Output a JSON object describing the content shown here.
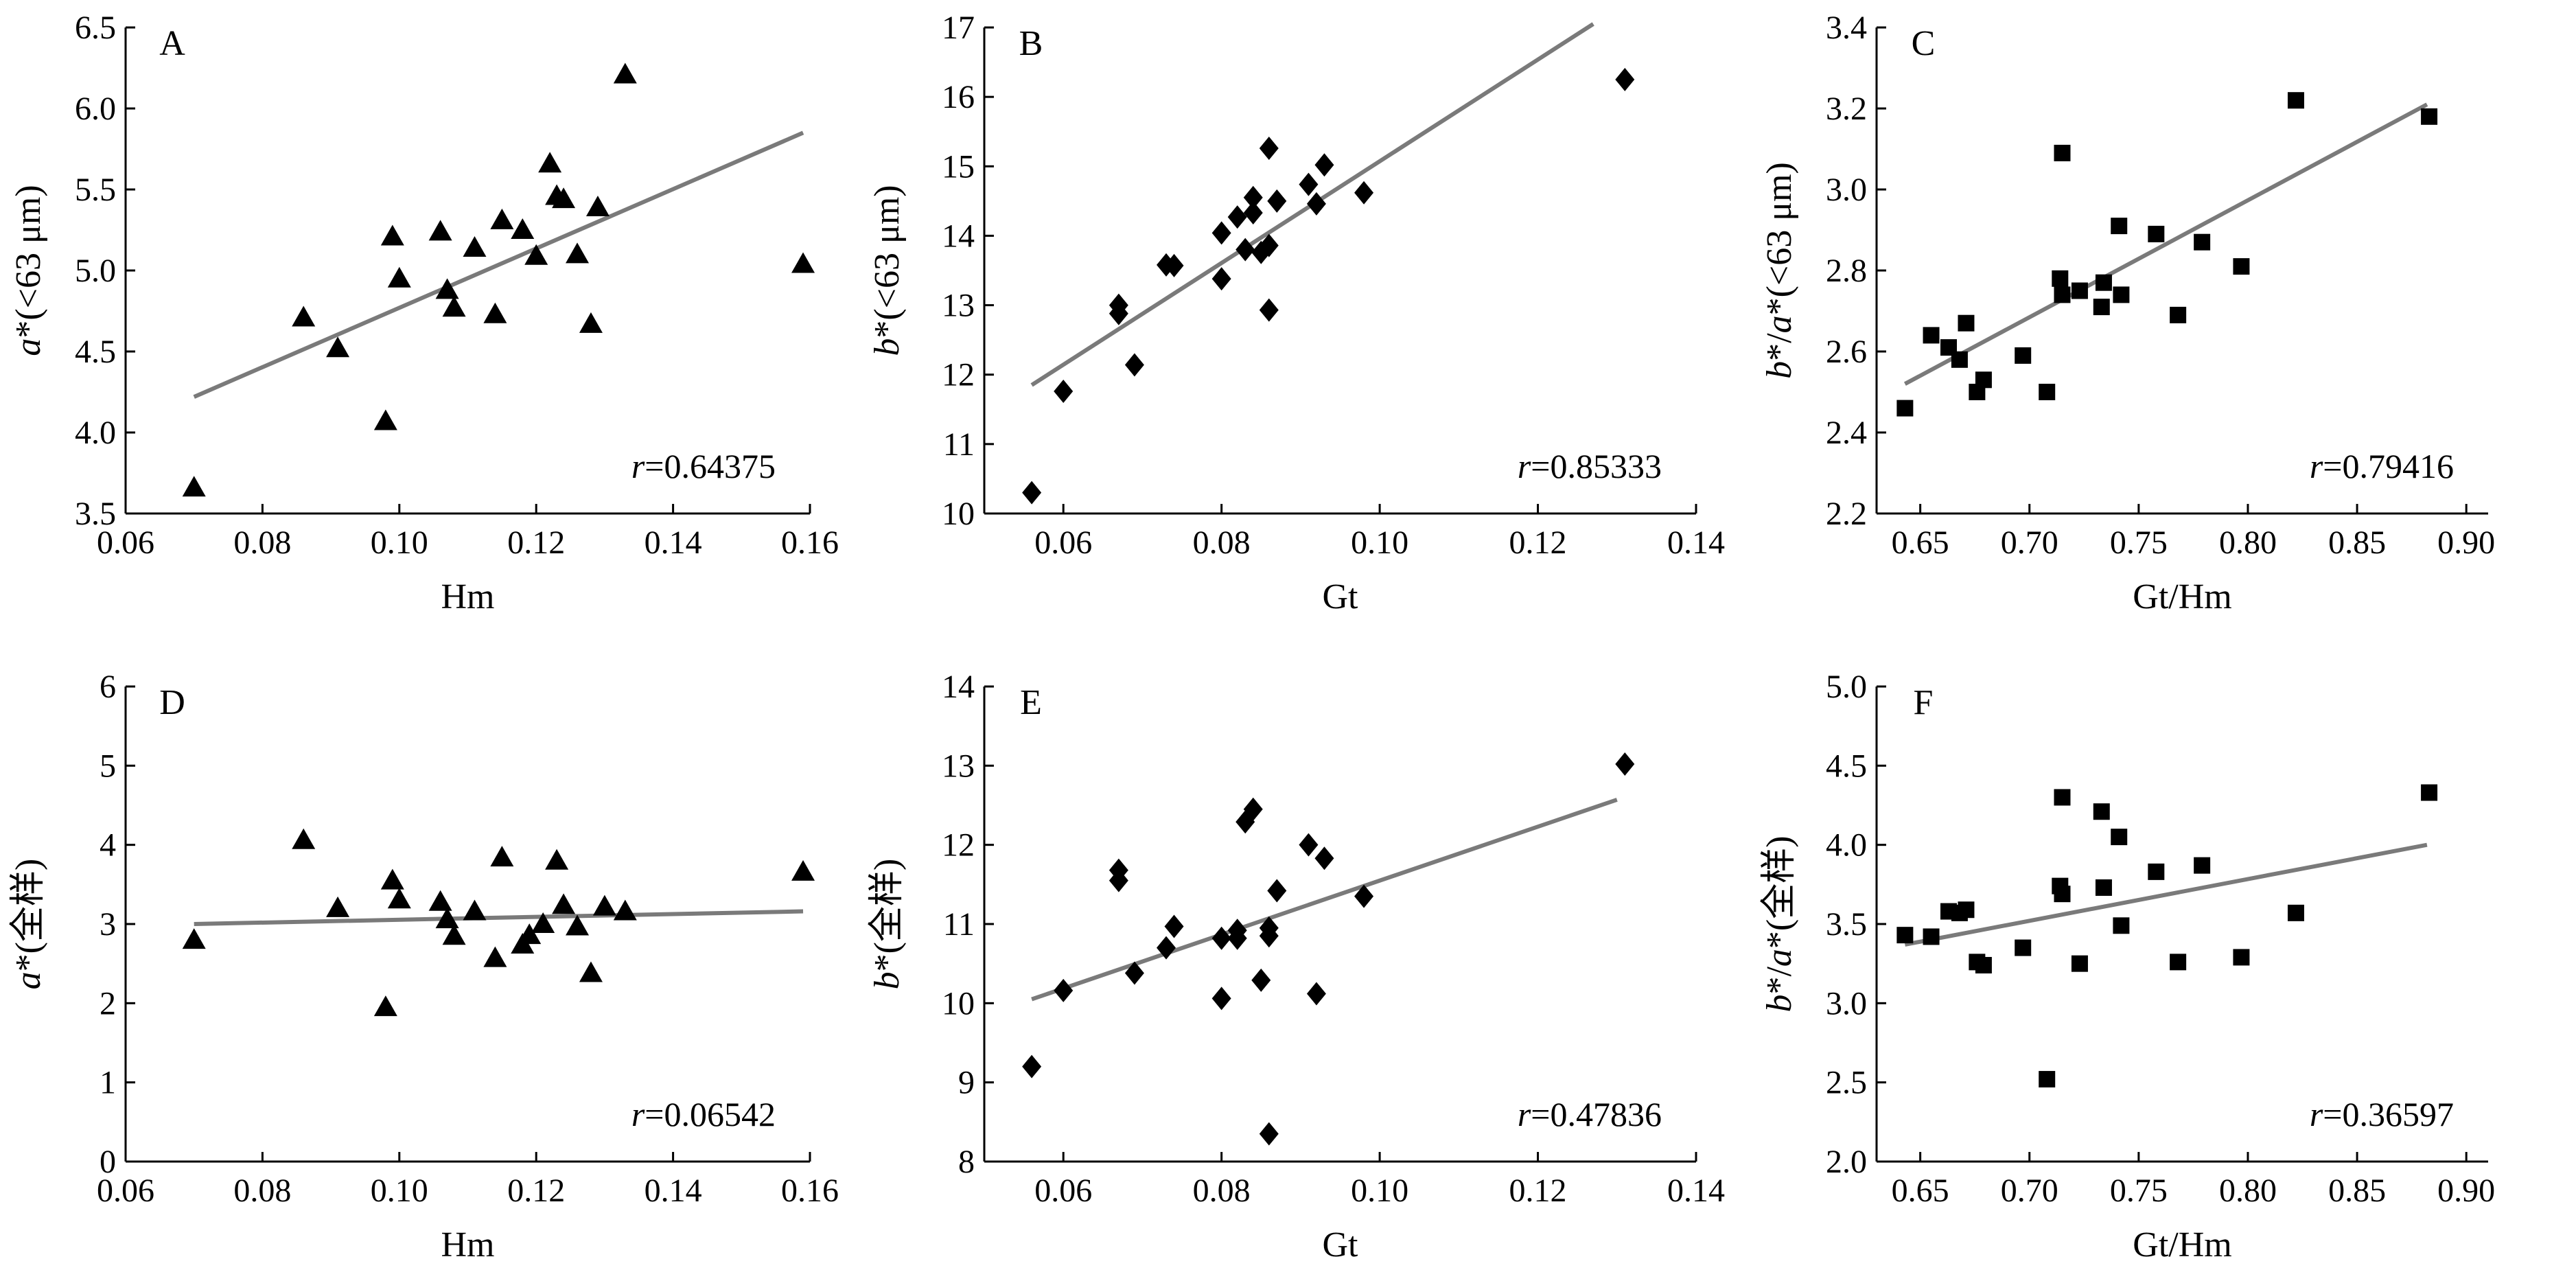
{
  "figure": {
    "colors": {
      "marker": "#000000",
      "fit_line": "#7a7a7a",
      "axis": "#000000"
    }
  },
  "chart_data": [
    {
      "panel": "A",
      "type": "scatter",
      "marker": "triangle",
      "xlabel": "Hm",
      "ylabel_italic": "a",
      "ylabel_rest": "*(<63 μm)",
      "xlim": [
        0.06,
        0.16
      ],
      "ylim": [
        3.5,
        6.5
      ],
      "x_ticks": [
        "0.06",
        "0.08",
        "0.10",
        "0.12",
        "0.14",
        "0.16"
      ],
      "y_ticks": [
        "3.5",
        "4.0",
        "4.5",
        "5.0",
        "5.5",
        "6.0",
        "6.5"
      ],
      "annotation_italic": "r",
      "annotation_rest": "=0.64375",
      "fit": [
        [
          0.07,
          4.22
        ],
        [
          0.159,
          5.85
        ]
      ],
      "points": [
        [
          0.07,
          3.66
        ],
        [
          0.086,
          4.71
        ],
        [
          0.091,
          4.52
        ],
        [
          0.098,
          4.07
        ],
        [
          0.099,
          5.21
        ],
        [
          0.1,
          4.95
        ],
        [
          0.106,
          5.24
        ],
        [
          0.107,
          4.88
        ],
        [
          0.108,
          4.77
        ],
        [
          0.111,
          5.14
        ],
        [
          0.114,
          4.73
        ],
        [
          0.115,
          5.31
        ],
        [
          0.118,
          5.25
        ],
        [
          0.12,
          5.09
        ],
        [
          0.122,
          5.66
        ],
        [
          0.123,
          5.46
        ],
        [
          0.124,
          5.44
        ],
        [
          0.126,
          5.1
        ],
        [
          0.128,
          4.67
        ],
        [
          0.129,
          5.39
        ],
        [
          0.133,
          6.21
        ],
        [
          0.159,
          5.04
        ]
      ]
    },
    {
      "panel": "B",
      "type": "scatter",
      "marker": "diamond",
      "xlabel": "Gt",
      "ylabel_italic": "b",
      "ylabel_rest": "*(<63 μm)",
      "xlim": [
        0.05,
        0.14
      ],
      "ylim": [
        10,
        17
      ],
      "x_ticks": [
        "0.06",
        "0.08",
        "0.10",
        "0.12",
        "0.14"
      ],
      "y_ticks": [
        "10",
        "11",
        "12",
        "13",
        "14",
        "15",
        "16",
        "17"
      ],
      "annotation_italic": "r",
      "annotation_rest": "=0.85333",
      "fit": [
        [
          0.056,
          11.85
        ],
        [
          0.127,
          17.05
        ]
      ],
      "points": [
        [
          0.056,
          10.3
        ],
        [
          0.06,
          11.76
        ],
        [
          0.067,
          13.0
        ],
        [
          0.067,
          12.88
        ],
        [
          0.069,
          12.14
        ],
        [
          0.073,
          13.58
        ],
        [
          0.074,
          13.57
        ],
        [
          0.08,
          14.04
        ],
        [
          0.08,
          13.38
        ],
        [
          0.082,
          14.27
        ],
        [
          0.083,
          13.8
        ],
        [
          0.084,
          14.33
        ],
        [
          0.084,
          14.55
        ],
        [
          0.085,
          13.76
        ],
        [
          0.086,
          15.26
        ],
        [
          0.086,
          13.86
        ],
        [
          0.086,
          12.93
        ],
        [
          0.087,
          14.5
        ],
        [
          0.091,
          14.74
        ],
        [
          0.092,
          14.46
        ],
        [
          0.093,
          15.02
        ],
        [
          0.098,
          14.62
        ],
        [
          0.131,
          16.25
        ]
      ]
    },
    {
      "panel": "C",
      "type": "scatter",
      "marker": "square",
      "xlabel": "Gt/Hm",
      "ylabel_italic_1": "b",
      "ylabel_mid": "*/",
      "ylabel_italic_2": "a",
      "ylabel_rest": "*(<63 μm)",
      "xlim": [
        0.63,
        0.91
      ],
      "ylim": [
        2.2,
        3.4
      ],
      "x_ticks": [
        "0.65",
        "0.70",
        "0.75",
        "0.80",
        "0.85",
        "0.90"
      ],
      "y_ticks": [
        "2.2",
        "2.4",
        "2.6",
        "2.8",
        "3.0",
        "3.2",
        "3.4"
      ],
      "annotation_italic": "r",
      "annotation_rest": "=0.79416",
      "fit": [
        [
          0.643,
          2.52
        ],
        [
          0.882,
          3.21
        ]
      ],
      "points": [
        [
          0.643,
          2.46
        ],
        [
          0.655,
          2.64
        ],
        [
          0.663,
          2.61
        ],
        [
          0.668,
          2.58
        ],
        [
          0.671,
          2.67
        ],
        [
          0.676,
          2.5
        ],
        [
          0.679,
          2.53
        ],
        [
          0.697,
          2.59
        ],
        [
          0.708,
          2.5
        ],
        [
          0.714,
          2.78
        ],
        [
          0.715,
          3.09
        ],
        [
          0.715,
          2.74
        ],
        [
          0.723,
          2.75
        ],
        [
          0.733,
          2.71
        ],
        [
          0.734,
          2.77
        ],
        [
          0.741,
          2.91
        ],
        [
          0.742,
          2.74
        ],
        [
          0.758,
          2.89
        ],
        [
          0.768,
          2.69
        ],
        [
          0.779,
          2.87
        ],
        [
          0.797,
          2.81
        ],
        [
          0.822,
          3.22
        ],
        [
          0.883,
          3.18
        ]
      ]
    },
    {
      "panel": "D",
      "type": "scatter",
      "marker": "triangle",
      "xlabel": "Hm",
      "ylabel_italic": "a",
      "ylabel_rest": "*(全样)",
      "xlim": [
        0.06,
        0.16
      ],
      "ylim": [
        0,
        6
      ],
      "x_ticks": [
        "0.06",
        "0.08",
        "0.10",
        "0.12",
        "0.14",
        "0.16"
      ],
      "y_ticks": [
        "0",
        "1",
        "2",
        "3",
        "4",
        "5",
        "6"
      ],
      "annotation_italic": "r",
      "annotation_rest": "=0.06542",
      "fit": [
        [
          0.07,
          3.0
        ],
        [
          0.159,
          3.16
        ]
      ],
      "points": [
        [
          0.07,
          2.8
        ],
        [
          0.086,
          4.06
        ],
        [
          0.091,
          3.2
        ],
        [
          0.098,
          1.95
        ],
        [
          0.099,
          3.55
        ],
        [
          0.1,
          3.31
        ],
        [
          0.106,
          3.28
        ],
        [
          0.107,
          3.06
        ],
        [
          0.108,
          2.85
        ],
        [
          0.111,
          3.16
        ],
        [
          0.114,
          2.57
        ],
        [
          0.115,
          3.84
        ],
        [
          0.118,
          2.74
        ],
        [
          0.119,
          2.86
        ],
        [
          0.121,
          3.0
        ],
        [
          0.123,
          3.8
        ],
        [
          0.124,
          3.24
        ],
        [
          0.126,
          2.97
        ],
        [
          0.128,
          2.38
        ],
        [
          0.13,
          3.22
        ],
        [
          0.133,
          3.16
        ],
        [
          0.159,
          3.66
        ]
      ]
    },
    {
      "panel": "E",
      "type": "scatter",
      "marker": "diamond",
      "xlabel": "Gt",
      "ylabel_italic": "b",
      "ylabel_rest": "*(全样)",
      "xlim": [
        0.05,
        0.14
      ],
      "ylim": [
        8,
        14
      ],
      "x_ticks": [
        "0.06",
        "0.08",
        "0.10",
        "0.12",
        "0.14"
      ],
      "y_ticks": [
        "8",
        "9",
        "10",
        "11",
        "12",
        "13",
        "14"
      ],
      "annotation_italic": "r",
      "annotation_rest": "=0.47836",
      "fit": [
        [
          0.056,
          10.05
        ],
        [
          0.13,
          12.57
        ]
      ],
      "points": [
        [
          0.056,
          9.2
        ],
        [
          0.06,
          10.16
        ],
        [
          0.067,
          11.68
        ],
        [
          0.067,
          11.55
        ],
        [
          0.069,
          10.38
        ],
        [
          0.073,
          10.7
        ],
        [
          0.074,
          10.97
        ],
        [
          0.08,
          10.82
        ],
        [
          0.08,
          10.06
        ],
        [
          0.082,
          10.92
        ],
        [
          0.082,
          10.82
        ],
        [
          0.083,
          12.29
        ],
        [
          0.084,
          12.45
        ],
        [
          0.085,
          10.29
        ],
        [
          0.086,
          10.95
        ],
        [
          0.086,
          10.85
        ],
        [
          0.086,
          8.35
        ],
        [
          0.087,
          11.42
        ],
        [
          0.091,
          12.0
        ],
        [
          0.092,
          10.12
        ],
        [
          0.093,
          11.83
        ],
        [
          0.098,
          11.35
        ],
        [
          0.131,
          13.02
        ]
      ]
    },
    {
      "panel": "F",
      "type": "scatter",
      "marker": "square",
      "xlabel": "Gt/Hm",
      "ylabel_italic_1": "b",
      "ylabel_mid": "*/",
      "ylabel_italic_2": "a",
      "ylabel_rest": "*(全样)",
      "xlim": [
        0.63,
        0.91
      ],
      "ylim": [
        2.0,
        5.0
      ],
      "x_ticks": [
        "0.65",
        "0.70",
        "0.75",
        "0.80",
        "0.85",
        "0.90"
      ],
      "y_ticks": [
        "2.0",
        "2.5",
        "3.0",
        "3.5",
        "4.0",
        "4.5",
        "5.0"
      ],
      "annotation_italic": "r",
      "annotation_rest": "=0.36597",
      "fit": [
        [
          0.643,
          3.37
        ],
        [
          0.882,
          4.0
        ]
      ],
      "points": [
        [
          0.643,
          3.43
        ],
        [
          0.655,
          3.42
        ],
        [
          0.663,
          3.58
        ],
        [
          0.668,
          3.57
        ],
        [
          0.671,
          3.59
        ],
        [
          0.676,
          3.26
        ],
        [
          0.679,
          3.24
        ],
        [
          0.697,
          3.35
        ],
        [
          0.708,
          2.52
        ],
        [
          0.714,
          3.74
        ],
        [
          0.715,
          4.3
        ],
        [
          0.715,
          3.69
        ],
        [
          0.723,
          3.25
        ],
        [
          0.733,
          4.21
        ],
        [
          0.734,
          3.73
        ],
        [
          0.741,
          4.05
        ],
        [
          0.742,
          3.49
        ],
        [
          0.758,
          3.83
        ],
        [
          0.768,
          3.26
        ],
        [
          0.779,
          3.87
        ],
        [
          0.797,
          3.29
        ],
        [
          0.822,
          3.57
        ],
        [
          0.883,
          4.33
        ]
      ]
    }
  ]
}
